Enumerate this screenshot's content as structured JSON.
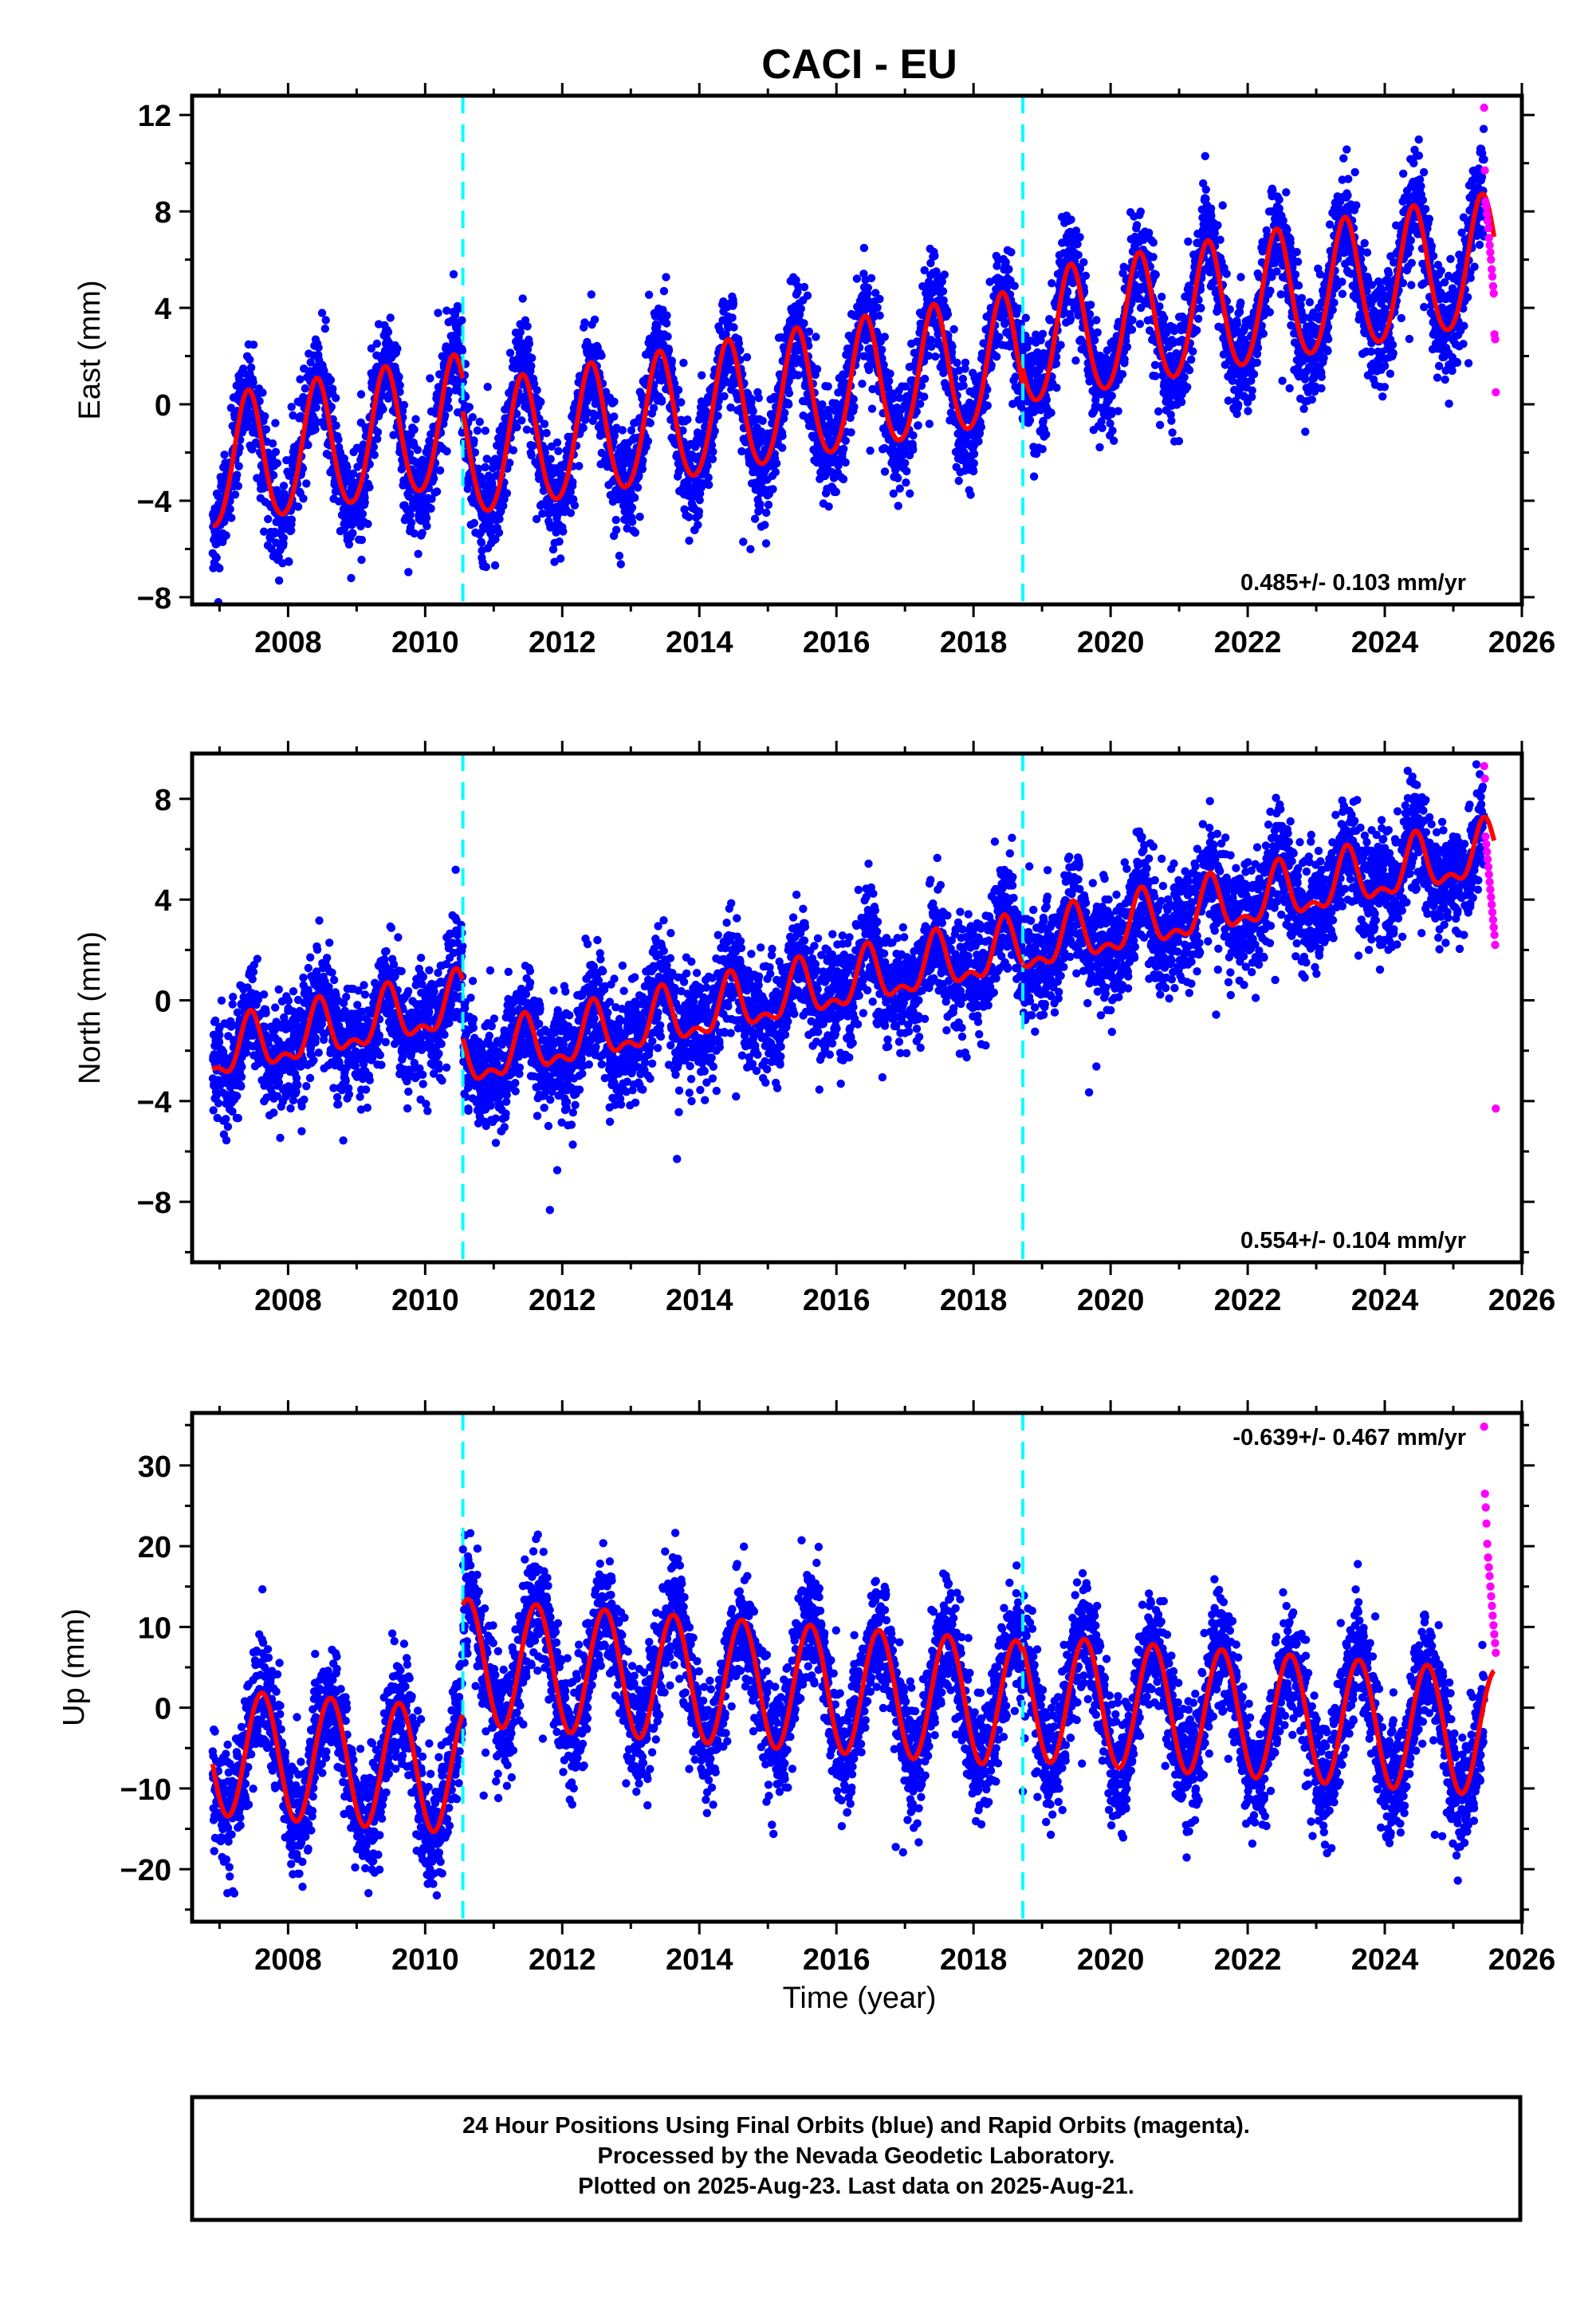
{
  "title": "CACI - EU",
  "xlabel": "Time (year)",
  "footer": {
    "lines": [
      "24 Hour Positions Using Final Orbits (blue) and Rapid Orbits (magenta).",
      "Processed by the Nevada Geodetic Laboratory.",
      "Plotted on 2025-Aug-23. Last data on 2025-Aug-21."
    ]
  },
  "colors": {
    "final_orbits": "#0000ff",
    "rapid_orbits": "#ff00ff",
    "model_fit": "#ff0000",
    "breaks": "#00ffff"
  },
  "chart_data": [
    {
      "type": "scatter",
      "ylabel": "East (mm)",
      "rate_label": "0.485+/- 0.103 mm/yr",
      "xlim": [
        2006.6,
        2026.0
      ],
      "ylim": [
        -8.3,
        12.8
      ],
      "xticks": [
        2008,
        2010,
        2012,
        2014,
        2016,
        2018,
        2020,
        2022,
        2024,
        2026
      ],
      "yticks": [
        -8,
        -4,
        0,
        4,
        8,
        12
      ],
      "breaks": [
        2010.55,
        2018.72
      ],
      "data_range": [
        2006.9,
        2025.45
      ],
      "model": {
        "offset": -2.6,
        "trend": 0.485,
        "annual_amp": 2.7,
        "annual_peak": 0.42,
        "semi_amp": 0.25,
        "noise_sd": 1.1,
        "steps": [
          {
            "t": 2010.55,
            "dy": -1.3
          },
          {
            "t": 2018.72,
            "dy": 0.7
          }
        ]
      },
      "rapid": {
        "x_start": 2025.45,
        "x_end": 2025.62,
        "values": [
          12.3,
          9.7,
          8.4,
          8.2,
          7.9,
          7.6,
          7.3,
          6.9,
          6.6,
          6.3,
          6.0,
          5.6,
          5.3,
          4.9,
          4.6,
          2.9,
          2.7,
          0.5
        ]
      }
    },
    {
      "type": "scatter",
      "ylabel": "North (mm)",
      "rate_label": "0.554+/- 0.104 mm/yr",
      "xlim": [
        2006.6,
        2026.0
      ],
      "ylim": [
        -10.4,
        9.8
      ],
      "xticks": [
        2008,
        2010,
        2012,
        2014,
        2016,
        2018,
        2020,
        2022,
        2024,
        2026
      ],
      "yticks": [
        -8,
        -4,
        0,
        4,
        8
      ],
      "breaks": [
        2010.55,
        2018.72
      ],
      "data_range": [
        2006.9,
        2025.45
      ],
      "model": {
        "offset": -2.2,
        "trend": 0.554,
        "annual_amp": 1.0,
        "annual_peak": 0.45,
        "semi_amp": 0.5,
        "noise_sd": 1.1,
        "steps": [
          {
            "t": 2010.55,
            "dy": -2.3
          },
          {
            "t": 2018.72,
            "dy": 0.0
          }
        ]
      },
      "rapid": {
        "x_start": 2025.45,
        "x_end": 2025.62,
        "values": [
          9.3,
          8.8,
          6.5,
          6.2,
          5.9,
          5.6,
          5.3,
          5.0,
          4.7,
          4.4,
          4.1,
          3.8,
          3.5,
          3.2,
          2.9,
          2.6,
          2.2,
          -4.3
        ]
      }
    },
    {
      "type": "scatter",
      "ylabel": "Up (mm)",
      "rate_label": "-0.639+/- 0.467 mm/yr",
      "xlim": [
        2006.6,
        2026.0
      ],
      "ylim": [
        -26.5,
        36.5
      ],
      "xticks": [
        2008,
        2010,
        2012,
        2014,
        2016,
        2018,
        2020,
        2022,
        2024,
        2026
      ],
      "yticks": [
        -20,
        -10,
        0,
        10,
        20,
        30
      ],
      "breaks": [
        2010.55,
        2018.72
      ],
      "data_range": [
        2006.9,
        2025.45
      ],
      "model": {
        "offset": -5.5,
        "trend": -0.639,
        "annual_amp": 7.8,
        "annual_peak": 0.62,
        "semi_amp": 0.0,
        "noise_sd": 3.6,
        "steps": [
          {
            "t": 2010.55,
            "dy": 13.5
          },
          {
            "t": 2018.72,
            "dy": 0.8
          }
        ]
      },
      "rapid": {
        "x_start": 2025.45,
        "x_end": 2025.62,
        "values": [
          34.8,
          26.5,
          24.8,
          22.8,
          20.3,
          18.6,
          17.4,
          16.3,
          15.0,
          13.8,
          12.6,
          11.4,
          10.2,
          9.1,
          8.0,
          6.8
        ]
      }
    }
  ]
}
